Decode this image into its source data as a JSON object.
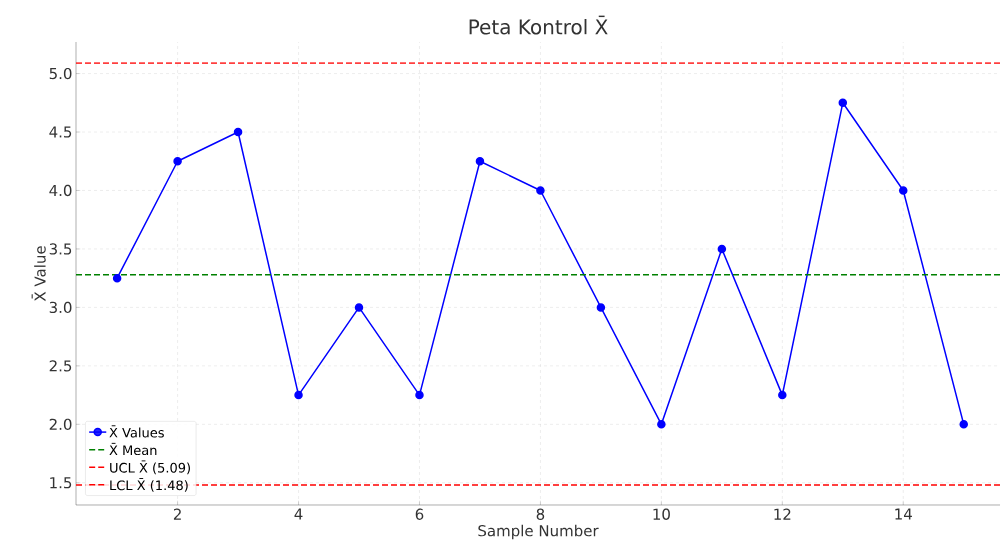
{
  "chart_data": {
    "type": "line",
    "title": "Peta Kontrol X̄",
    "xlabel": "Sample Number",
    "ylabel": "X̄ Value",
    "x": [
      1,
      2,
      3,
      4,
      5,
      6,
      7,
      8,
      9,
      10,
      11,
      12,
      13,
      14,
      15
    ],
    "series": [
      {
        "name": "X̄ Values",
        "color": "#0000ff",
        "values": [
          3.25,
          4.25,
          4.5,
          2.25,
          3.0,
          2.25,
          4.25,
          4.0,
          3.0,
          2.0,
          3.5,
          2.25,
          4.75,
          4.0,
          2.0
        ]
      }
    ],
    "ref_lines": [
      {
        "axis": "y",
        "value": 3.28,
        "label": "X̄ Mean",
        "color": "#008000",
        "line_style": "dashed"
      },
      {
        "axis": "y",
        "value": 5.09,
        "label": "UCL X̄ (5.09)",
        "color": "#ff0000",
        "line_style": "dashed"
      },
      {
        "axis": "y",
        "value": 1.48,
        "label": "LCL X̄ (1.48)",
        "color": "#ff0000",
        "line_style": "dashed"
      }
    ],
    "xlim": [
      0.32,
      15.6
    ],
    "ylim": [
      1.31,
      5.27
    ],
    "xticks": [
      2,
      4,
      6,
      8,
      10,
      12,
      14
    ],
    "yticks": [
      {
        "value": 1.5,
        "label": "1.5"
      },
      {
        "value": 2,
        "label": "2.0"
      },
      {
        "value": 2.5,
        "label": "2.5"
      },
      {
        "value": 3,
        "label": "3.0"
      },
      {
        "value": 3.5,
        "label": "3.5"
      },
      {
        "value": 4,
        "label": "4.0"
      },
      {
        "value": 4.5,
        "label": "4.5"
      },
      {
        "value": 5,
        "label": "5.0"
      }
    ],
    "grid": true,
    "legend": "bottom left",
    "marker": "circle",
    "line_style": "solid"
  }
}
